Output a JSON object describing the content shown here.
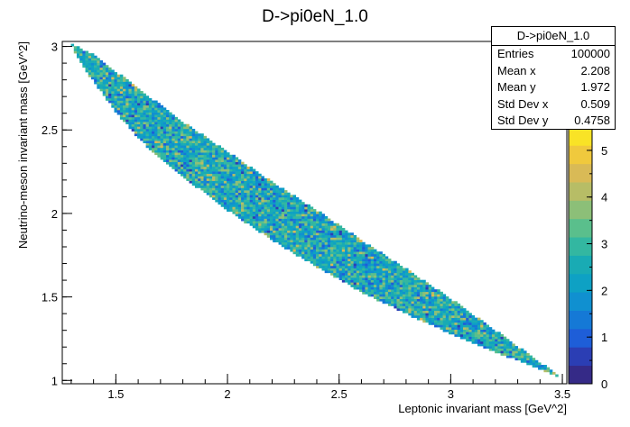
{
  "chart_data": {
    "type": "heatmap",
    "title": "D->pi0eN_1.0",
    "xlabel": "Leptonic invariant mass [GeV^2]",
    "ylabel": "Neutrino-meson invariant mass [GeV^2]",
    "xlim": [
      1.26,
      3.52
    ],
    "ylim": [
      0.98,
      3.03
    ],
    "x_ticks": [
      "1.5",
      "2",
      "2.5",
      "3",
      "3.5"
    ],
    "y_ticks": [
      "1",
      "1.5",
      "2",
      "2.5",
      "3"
    ],
    "x_tick_values": [
      1.5,
      2.0,
      2.5,
      3.0,
      3.5
    ],
    "y_tick_values": [
      1.0,
      1.5,
      2.0,
      2.5,
      3.0
    ],
    "z_range": [
      0,
      5.5
    ],
    "z_ticks": [
      "0",
      "1",
      "2",
      "3",
      "4",
      "5"
    ],
    "z_tick_values": [
      0,
      1,
      2,
      3,
      4,
      5
    ],
    "region": {
      "upper_edge": [
        [
          1.3,
          3.02
        ],
        [
          1.4,
          2.95
        ],
        [
          1.6,
          2.75
        ],
        [
          1.8,
          2.55
        ],
        [
          2.0,
          2.37
        ],
        [
          2.2,
          2.19
        ],
        [
          2.4,
          2.02
        ],
        [
          2.6,
          1.84
        ],
        [
          2.8,
          1.67
        ],
        [
          3.0,
          1.49
        ],
        [
          3.2,
          1.3
        ],
        [
          3.4,
          1.11
        ],
        [
          3.49,
          1.02
        ]
      ],
      "lower_edge": [
        [
          1.3,
          3.02
        ],
        [
          1.32,
          2.95
        ],
        [
          1.4,
          2.79
        ],
        [
          1.5,
          2.61
        ],
        [
          1.6,
          2.45
        ],
        [
          1.7,
          2.33
        ],
        [
          1.8,
          2.22
        ],
        [
          2.0,
          2.02
        ],
        [
          2.2,
          1.84
        ],
        [
          2.4,
          1.68
        ],
        [
          2.6,
          1.53
        ],
        [
          2.8,
          1.4
        ],
        [
          3.0,
          1.28
        ],
        [
          3.2,
          1.17
        ],
        [
          3.4,
          1.07
        ],
        [
          3.49,
          1.02
        ]
      ]
    },
    "typical_bin_content": 2.5,
    "grid": false,
    "legend": "top-right statistics box"
  },
  "stats": {
    "name": "D->pi0eN_1.0",
    "rows": [
      {
        "label": "Entries",
        "value": "100000"
      },
      {
        "label": "Mean x",
        "value": "2.208"
      },
      {
        "label": "Mean y",
        "value": "1.972"
      },
      {
        "label": "Std Dev x",
        "value": "0.509"
      },
      {
        "label": "Std Dev y",
        "value": "0.4758"
      }
    ]
  },
  "palette": [
    "#352a87",
    "#2b3eb4",
    "#1e5ed8",
    "#1579d6",
    "#1090d0",
    "#0ea1c4",
    "#19abb4",
    "#33b7a1",
    "#5abf8c",
    "#8cbf78",
    "#b7bd66",
    "#d9ba56",
    "#f0c93d",
    "#f9e326"
  ]
}
